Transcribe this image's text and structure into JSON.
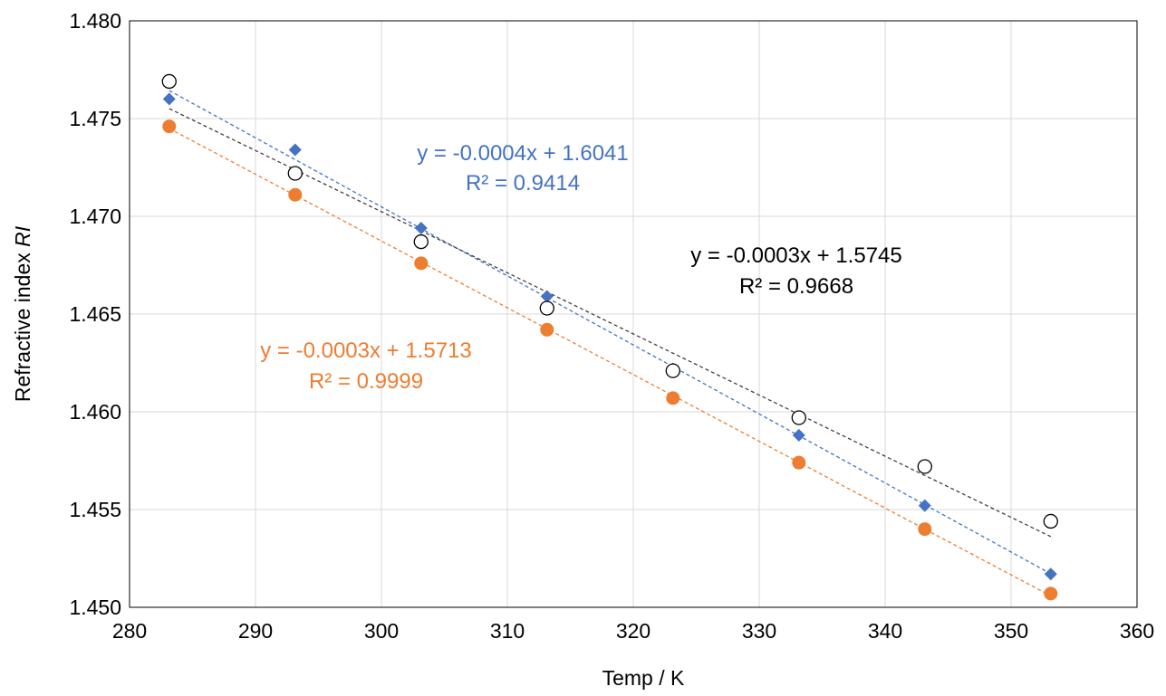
{
  "chart_data": {
    "type": "scatter",
    "xlabel": "Temp / K",
    "ylabel": "Refractive index ",
    "ylabel_italic": "RI",
    "xlim": [
      280,
      360
    ],
    "ylim": [
      1.45,
      1.48
    ],
    "xticks": [
      "280",
      "290",
      "300",
      "310",
      "320",
      "330",
      "340",
      "350",
      "360"
    ],
    "yticks": [
      "1.450",
      "1.455",
      "1.460",
      "1.465",
      "1.470",
      "1.475",
      "1.480"
    ],
    "grid": true,
    "legend": "none",
    "x": [
      283.15,
      293.15,
      303.15,
      313.15,
      323.15,
      333.15,
      343.15,
      353.15
    ],
    "series": [
      {
        "marker": "diamond",
        "color": "#4472C4",
        "values": [
          1.476,
          1.4734,
          1.4694,
          1.4659,
          1.4622,
          1.4588,
          1.4552,
          1.4517
        ],
        "trendline": {
          "slope": -0.0004,
          "intercept": 1.6041,
          "equation": "y = -0.0004x + 1.6041",
          "r2": "R² = 0.9414"
        }
      },
      {
        "marker": "open-circle",
        "color": "#000000",
        "values": [
          1.4769,
          1.4722,
          1.4687,
          1.4653,
          1.4621,
          1.4597,
          1.4572,
          1.4544
        ],
        "trendline": {
          "slope": -0.0003,
          "intercept": 1.5745,
          "equation": "y = -0.0003x + 1.5745",
          "r2": "R² = 0.9668"
        }
      },
      {
        "marker": "filled-circle",
        "color": "#ED7D31",
        "values": [
          1.4746,
          1.4711,
          1.4676,
          1.4642,
          1.4607,
          1.4574,
          1.454,
          1.4507
        ],
        "trendline": {
          "slope": -0.0003,
          "intercept": 1.5713,
          "equation": "y = -0.0003x + 1.5713",
          "r2": "R² = 0.9999"
        }
      }
    ]
  }
}
